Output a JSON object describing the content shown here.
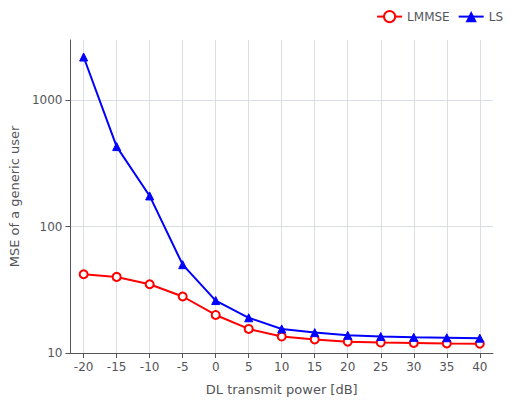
{
  "chart_data": {
    "type": "line",
    "xlabel": "DL transmit power [dB]",
    "ylabel": "MSE of a generic user",
    "x": [
      -20,
      -15,
      -10,
      -5,
      0,
      5,
      10,
      15,
      20,
      25,
      30,
      35,
      40
    ],
    "series": [
      {
        "name": "LMMSE",
        "color": "#ff0000",
        "marker": "open_circle",
        "values": [
          42,
          40,
          35,
          28,
          20,
          15.5,
          13.5,
          12.8,
          12.3,
          12.1,
          12.0,
          11.9,
          11.85
        ]
      },
      {
        "name": "LS",
        "color": "#0000ff",
        "marker": "triangle",
        "values": [
          2200,
          430,
          175,
          50,
          26,
          19,
          15.5,
          14.5,
          13.8,
          13.5,
          13.3,
          13.2,
          13.1
        ]
      }
    ],
    "xlim": [
      -22,
      42
    ],
    "xticks": [
      -20,
      -15,
      -10,
      -5,
      0,
      5,
      10,
      15,
      20,
      25,
      30,
      35,
      40
    ],
    "ylim": [
      10,
      3000
    ],
    "yticks": [
      10,
      100,
      1000
    ],
    "log": "y",
    "grid": true,
    "legend": "upper right"
  }
}
